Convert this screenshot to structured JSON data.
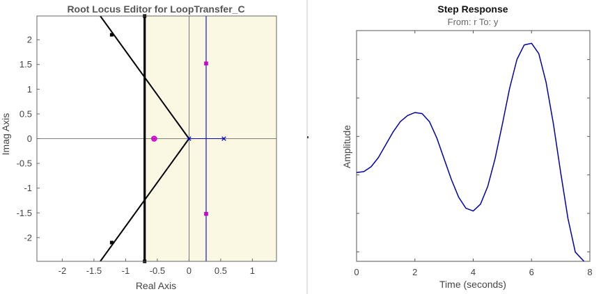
{
  "chart_data": [
    {
      "type": "line",
      "title": "Root Locus Editor for LoopTransfer_C",
      "xlabel": "Real Axis",
      "ylabel": "Imag Axis",
      "xlim": [
        -2.4,
        1.38
      ],
      "ylim": [
        -2.48,
        2.48
      ],
      "xticks": [
        -2,
        -1.5,
        -1,
        -0.5,
        0,
        0.5,
        1
      ],
      "xtick_labels": [
        "-2",
        "-1.5",
        "-1",
        "-0.5",
        "0",
        "0.5",
        "1"
      ],
      "yticks": [
        2,
        1.5,
        1,
        0.5,
        0,
        -0.5,
        -1,
        -1.5,
        -2
      ],
      "ytick_labels": [
        "2",
        "1.5",
        "1",
        "0.5",
        "0",
        "-0.5",
        "-1",
        "-1.5",
        "-2"
      ],
      "grid": false,
      "colors": {
        "region": "#faf8e2",
        "locus": "#000000",
        "poles": "#0000cc",
        "closed_loop": "#cc00cc",
        "axes": "#333333"
      },
      "region_min_x": -0.7,
      "locus_branches": [
        {
          "x": [
            0,
            -1.4
          ],
          "y": [
            0,
            2.48
          ]
        },
        {
          "x": [
            0,
            -1.4
          ],
          "y": [
            0,
            -2.48
          ]
        },
        {
          "x": [
            -0.7,
            -0.7
          ],
          "y": [
            2.48,
            -2.48
          ]
        },
        {
          "x": [
            0.27,
            0.27
          ],
          "y": [
            2.48,
            -2.48
          ]
        },
        {
          "x": [
            0,
            0.55
          ],
          "y": [
            0,
            0
          ]
        }
      ],
      "branch_markers": [
        {
          "x": -1.22,
          "y": 2.1
        },
        {
          "x": -1.22,
          "y": -2.1
        },
        {
          "x": -0.7,
          "y": 2.48
        },
        {
          "x": -0.7,
          "y": -2.48
        }
      ],
      "open_loop_poles": [
        {
          "x": 0.55,
          "y": 0
        },
        {
          "x": 0,
          "y": 0
        }
      ],
      "closed_loop_poles": [
        {
          "x": 0.27,
          "y": 1.52
        },
        {
          "x": 0.27,
          "y": -1.52
        },
        {
          "x": -0.55,
          "y": 0
        }
      ]
    },
    {
      "type": "line",
      "title": "Step Response",
      "subtitle": "From: r  To: y",
      "xlabel": "Time (seconds)",
      "ylabel": "Amplitude",
      "xlim": [
        0,
        8
      ],
      "ylim": [
        0,
        10
      ],
      "xticks": [
        0,
        2,
        4,
        6,
        8
      ],
      "xtick_labels": [
        "0",
        "2",
        "4",
        "6",
        "8"
      ],
      "y_tick_count": 6,
      "grid": false,
      "colors": {
        "line": "#0000aa"
      },
      "series": [
        {
          "x": [
            0,
            0.25,
            0.5,
            0.75,
            1,
            1.25,
            1.5,
            1.75,
            2,
            2.25,
            2.5,
            2.75,
            3,
            3.25,
            3.5,
            3.75,
            4,
            4.25,
            4.5,
            4.75,
            5,
            5.25,
            5.5,
            5.75,
            6,
            6.25,
            6.5,
            6.75,
            7,
            7.25,
            7.5,
            7.8
          ],
          "y": [
            3.85,
            3.89,
            4.1,
            4.5,
            5.05,
            5.6,
            6.05,
            6.32,
            6.45,
            6.4,
            6.05,
            5.35,
            4.45,
            3.55,
            2.78,
            2.3,
            2.18,
            2.48,
            3.25,
            4.45,
            5.95,
            7.5,
            8.75,
            9.38,
            9.45,
            9.0,
            7.75,
            5.95,
            3.85,
            1.85,
            0.4,
            -0.25
          ]
        }
      ]
    }
  ]
}
